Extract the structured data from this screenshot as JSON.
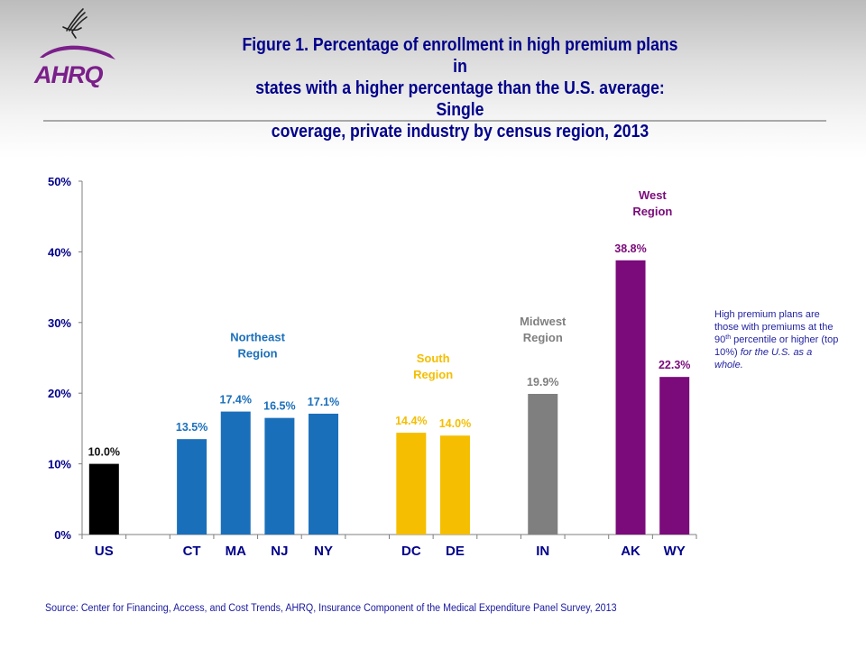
{
  "header": {
    "logo_text": "AHRQ",
    "logo_icon": "hhs-eagle-icon",
    "title": "Figure 1. Percentage of enrollment in high premium plans in\nstates with a higher percentage than the U.S. average: Single\ncoverage, private industry by census region, 2013"
  },
  "colors": {
    "us": "#000000",
    "northeast": "#1a6fbb",
    "south": "#f5be00",
    "midwest": "#7f7f7f",
    "west": "#7b0a7b",
    "axis_text": "#00008b",
    "title": "#00008b"
  },
  "chart_data": {
    "type": "bar",
    "title": "Figure 1. Percentage of enrollment in high premium plans in states with a higher percentage than the U.S. average: Single coverage, private industry by census region, 2013",
    "xlabel": "",
    "ylabel": "",
    "ylim": [
      0,
      50
    ],
    "yticks": [
      0,
      10,
      20,
      30,
      40,
      50
    ],
    "ytick_labels": [
      "0%",
      "10%",
      "20%",
      "30%",
      "40%",
      "50%"
    ],
    "grid": false,
    "legend": "none",
    "categories": [
      "US",
      "",
      "CT",
      "MA",
      "NJ",
      "NY",
      "",
      "DC",
      "DE",
      "",
      "IN",
      "",
      "AK",
      "WY"
    ],
    "values": [
      10.0,
      null,
      13.5,
      17.4,
      16.5,
      17.1,
      null,
      14.4,
      14.0,
      null,
      19.9,
      null,
      38.8,
      22.3
    ],
    "data_labels": [
      "10.0%",
      "",
      "13.5%",
      "17.4%",
      "16.5%",
      "17.1%",
      "",
      "14.4%",
      "14.0%",
      "",
      "19.9%",
      "",
      "38.8%",
      "22.3%"
    ],
    "groups": [
      "us",
      null,
      "northeast",
      "northeast",
      "northeast",
      "northeast",
      null,
      "south",
      "south",
      null,
      "midwest",
      null,
      "west",
      "west"
    ],
    "region_labels": [
      {
        "group": "northeast",
        "text": "Northeast\nRegion"
      },
      {
        "group": "south",
        "text": "South\nRegion"
      },
      {
        "group": "midwest",
        "text": "Midwest\nRegion"
      },
      {
        "group": "west",
        "text": "West\nRegion"
      }
    ]
  },
  "note": {
    "line1": "High premium plans are those with premiums at the 90",
    "superscript": "th",
    "line2": " percentile or higher (top 10%) ",
    "italic": "for the U.S. as a whole."
  },
  "source": "Source: Center for Financing, Access, and Cost Trends, AHRQ, Insurance Component of the Medical Expenditure Panel Survey, 2013"
}
